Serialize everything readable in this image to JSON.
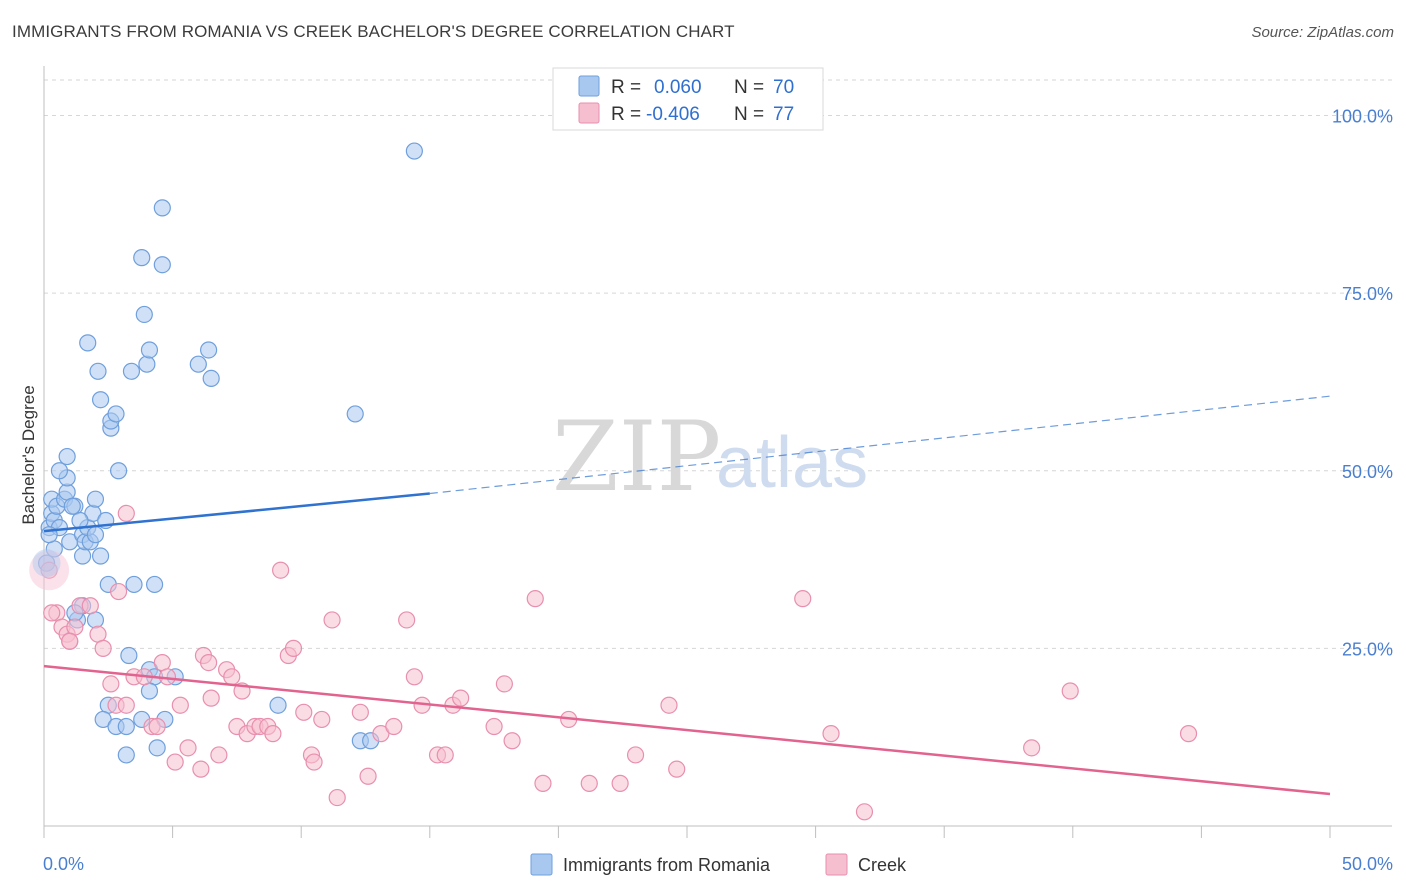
{
  "title": "IMMIGRANTS FROM ROMANIA VS CREEK BACHELOR'S DEGREE CORRELATION CHART",
  "source": "Source: ZipAtlas.com",
  "watermark": {
    "zip": "ZIP",
    "atlas": "atlas"
  },
  "legend": {
    "rows": [
      {
        "r_label": "R =",
        "r_value": "0.060",
        "n_label": "N =",
        "n_value": "70"
      },
      {
        "r_label": "R =",
        "r_value": "-0.406",
        "n_label": "N =",
        "n_value": "77"
      }
    ]
  },
  "bottom_legend": [
    "Immigrants from Romania",
    "Creek"
  ],
  "colors": {
    "romania_fill": "#a9c8f0",
    "romania_stroke": "#6f9fdc",
    "romania_line": "#2f72cf",
    "creek_fill": "#f6bfd0",
    "creek_stroke": "#e88fae",
    "creek_line": "#e2638f",
    "grid": "#d6d6d6",
    "tick_text": "#4a7fd0"
  },
  "chart_data": {
    "type": "scatter",
    "xlabel": "",
    "ylabel": "Bachelor's Degree",
    "xlim": [
      0,
      50
    ],
    "ylim": [
      0,
      105
    ],
    "x_tick_labels": [
      "0.0%",
      "50.0%"
    ],
    "y_ticks": [
      25,
      50,
      75,
      100
    ],
    "y_tick_labels": [
      "25.0%",
      "50.0%",
      "75.0%",
      "100.0%"
    ],
    "grid": true,
    "legend_position": "top-center",
    "series": [
      {
        "name": "Immigrants from Romania",
        "trend": {
          "x0": 0,
          "y0": 41.5,
          "x1": 15,
          "y1": 46.8,
          "x_end": 50,
          "y_end": 60.5
        },
        "points": [
          [
            0.2,
            42
          ],
          [
            0.3,
            44
          ],
          [
            0.4,
            43
          ],
          [
            0.3,
            46
          ],
          [
            0.5,
            45
          ],
          [
            0.6,
            42
          ],
          [
            0.8,
            46
          ],
          [
            0.9,
            47
          ],
          [
            0.9,
            49
          ],
          [
            0.9,
            52
          ],
          [
            0.6,
            50
          ],
          [
            1,
            40
          ],
          [
            1.2,
            45
          ],
          [
            1.5,
            38
          ],
          [
            1.5,
            41
          ],
          [
            1.6,
            40
          ],
          [
            1.8,
            40
          ],
          [
            1.7,
            42
          ],
          [
            1.9,
            44
          ],
          [
            2,
            41
          ],
          [
            2.2,
            38
          ],
          [
            2,
            46
          ],
          [
            2.5,
            34
          ],
          [
            2.9,
            50
          ],
          [
            2.6,
            56
          ],
          [
            2.6,
            57
          ],
          [
            2.8,
            58
          ],
          [
            2.2,
            60
          ],
          [
            2.1,
            64
          ],
          [
            1.7,
            68
          ],
          [
            3.4,
            64
          ],
          [
            4.0,
            65
          ],
          [
            4.1,
            67
          ],
          [
            3.9,
            72
          ],
          [
            3.8,
            80
          ],
          [
            4.6,
            79
          ],
          [
            4.6,
            87
          ],
          [
            6.0,
            65
          ],
          [
            6.4,
            67
          ],
          [
            6.5,
            63
          ],
          [
            3.5,
            34
          ],
          [
            4.3,
            34
          ],
          [
            1.5,
            31
          ],
          [
            1.3,
            29
          ],
          [
            2.0,
            29
          ],
          [
            3.3,
            24
          ],
          [
            4.1,
            22
          ],
          [
            4.3,
            21
          ],
          [
            5.1,
            21
          ],
          [
            2.5,
            17
          ],
          [
            2.3,
            15
          ],
          [
            2.8,
            14
          ],
          [
            3.2,
            14
          ],
          [
            3.8,
            15
          ],
          [
            4.7,
            15
          ],
          [
            4.1,
            19
          ],
          [
            3.2,
            10
          ],
          [
            4.4,
            11
          ],
          [
            9.1,
            17
          ],
          [
            12.3,
            12
          ],
          [
            12.7,
            12
          ],
          [
            12.1,
            58
          ],
          [
            14.4,
            95
          ],
          [
            0.1,
            37
          ],
          [
            0.4,
            39
          ],
          [
            0.2,
            41
          ],
          [
            1.1,
            45
          ],
          [
            1.4,
            43
          ],
          [
            2.4,
            43
          ],
          [
            1.2,
            30
          ]
        ]
      },
      {
        "name": "Creek",
        "trend": {
          "x0": 0,
          "y0": 22.5,
          "x1": 50,
          "y1": 4.5
        },
        "points": [
          [
            0.2,
            36
          ],
          [
            0.5,
            30
          ],
          [
            0.7,
            28
          ],
          [
            0.9,
            27
          ],
          [
            1,
            26
          ],
          [
            1.2,
            28
          ],
          [
            1.4,
            31
          ],
          [
            1.8,
            31
          ],
          [
            2.1,
            27
          ],
          [
            2.3,
            25
          ],
          [
            2.9,
            33
          ],
          [
            3.2,
            44
          ],
          [
            2.6,
            20
          ],
          [
            2.8,
            17
          ],
          [
            3.2,
            17
          ],
          [
            3.5,
            21
          ],
          [
            3.9,
            21
          ],
          [
            4.2,
            14
          ],
          [
            4.4,
            14
          ],
          [
            4.6,
            23
          ],
          [
            4.8,
            21
          ],
          [
            5.3,
            17
          ],
          [
            5.1,
            9
          ],
          [
            5.6,
            11
          ],
          [
            6.1,
            8
          ],
          [
            6.2,
            24
          ],
          [
            6.4,
            23
          ],
          [
            6.5,
            18
          ],
          [
            6.8,
            10
          ],
          [
            7.1,
            22
          ],
          [
            7.3,
            21
          ],
          [
            7.7,
            19
          ],
          [
            7.5,
            14
          ],
          [
            7.9,
            13
          ],
          [
            8.2,
            14
          ],
          [
            8.4,
            14
          ],
          [
            8.7,
            14
          ],
          [
            8.9,
            13
          ],
          [
            9.2,
            36
          ],
          [
            9.5,
            24
          ],
          [
            9.7,
            25
          ],
          [
            10.1,
            16
          ],
          [
            10.4,
            10
          ],
          [
            10.5,
            9
          ],
          [
            10.8,
            15
          ],
          [
            11.2,
            29
          ],
          [
            11.4,
            4
          ],
          [
            12.3,
            16
          ],
          [
            12.6,
            7
          ],
          [
            13.1,
            13
          ],
          [
            13.6,
            14
          ],
          [
            14.1,
            29
          ],
          [
            14.4,
            21
          ],
          [
            14.7,
            17
          ],
          [
            15.3,
            10
          ],
          [
            15.6,
            10
          ],
          [
            15.9,
            17
          ],
          [
            16.2,
            18
          ],
          [
            17.5,
            14
          ],
          [
            17.9,
            20
          ],
          [
            18.2,
            12
          ],
          [
            19.1,
            32
          ],
          [
            19.4,
            6
          ],
          [
            20.4,
            15
          ],
          [
            21.2,
            6
          ],
          [
            22.4,
            6
          ],
          [
            23.0,
            10
          ],
          [
            24.3,
            17
          ],
          [
            24.6,
            8
          ],
          [
            29.5,
            32
          ],
          [
            30.6,
            13
          ],
          [
            31.9,
            2
          ],
          [
            38.4,
            11
          ],
          [
            39.9,
            19
          ],
          [
            44.5,
            13
          ],
          [
            0.3,
            30
          ],
          [
            1.0,
            26
          ]
        ]
      }
    ]
  }
}
